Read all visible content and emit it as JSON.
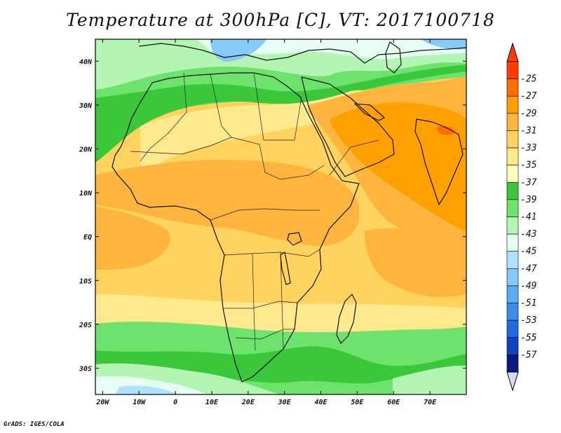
{
  "title": "Temperature at 300hPa [C], VT: 2017100718",
  "footer": "GrADS: IGES/COLA",
  "map": {
    "lon_range": [
      -22,
      80
    ],
    "lat_range": [
      -36,
      45
    ],
    "lon_ticks": [
      {
        "value": -20,
        "label": "20W"
      },
      {
        "value": -10,
        "label": "10W"
      },
      {
        "value": 0,
        "label": "0"
      },
      {
        "value": 10,
        "label": "10E"
      },
      {
        "value": 20,
        "label": "20E"
      },
      {
        "value": 30,
        "label": "30E"
      },
      {
        "value": 40,
        "label": "40E"
      },
      {
        "value": 50,
        "label": "50E"
      },
      {
        "value": 60,
        "label": "60E"
      },
      {
        "value": 70,
        "label": "70E"
      }
    ],
    "lat_ticks": [
      {
        "value": 40,
        "label": "40N"
      },
      {
        "value": 30,
        "label": "30N"
      },
      {
        "value": 20,
        "label": "20N"
      },
      {
        "value": 10,
        "label": "10N"
      },
      {
        "value": 0,
        "label": "EQ"
      },
      {
        "value": -10,
        "label": "10S"
      },
      {
        "value": -20,
        "label": "20S"
      },
      {
        "value": -30,
        "label": "30S"
      }
    ]
  },
  "colorbar": {
    "levels": [
      {
        "label": "-25",
        "color": "#ff3d00"
      },
      {
        "label": "-27",
        "color": "#ff6f00"
      },
      {
        "label": "-29",
        "color": "#ffa000"
      },
      {
        "label": "-31",
        "color": "#ffb53d"
      },
      {
        "label": "-33",
        "color": "#ffd35e"
      },
      {
        "label": "-35",
        "color": "#ffe98c"
      },
      {
        "label": "-37",
        "color": "#ffffbe"
      },
      {
        "label": "-39",
        "color": "#3ac83a"
      },
      {
        "label": "-41",
        "color": "#6de36d"
      },
      {
        "label": "-43",
        "color": "#b4f5b4"
      },
      {
        "label": "-45",
        "color": "#e6fff3"
      },
      {
        "label": "-47",
        "color": "#b0e2ff"
      },
      {
        "label": "-49",
        "color": "#87c9f7"
      },
      {
        "label": "-51",
        "color": "#5aaef0"
      },
      {
        "label": "-53",
        "color": "#3a8de8"
      },
      {
        "label": "-55",
        "color": "#1f6be0"
      },
      {
        "label": "-57",
        "color": "#1042c2"
      },
      {
        "label": "",
        "color": "#0a1a80"
      }
    ],
    "top_color": "#ff3d00",
    "bottom_color": "#d9d9ff"
  },
  "colors": {
    "warm_deep": "#ffa000",
    "warm": "#ffb53d",
    "mid": "#ffd35e",
    "pale": "#ffe98c",
    "green_dark": "#3ac83a",
    "green": "#6de36d",
    "green_light": "#b4f5b4",
    "cyan": "#e6fff3",
    "blue_light": "#b0e2ff",
    "blue": "#87c9f7"
  }
}
